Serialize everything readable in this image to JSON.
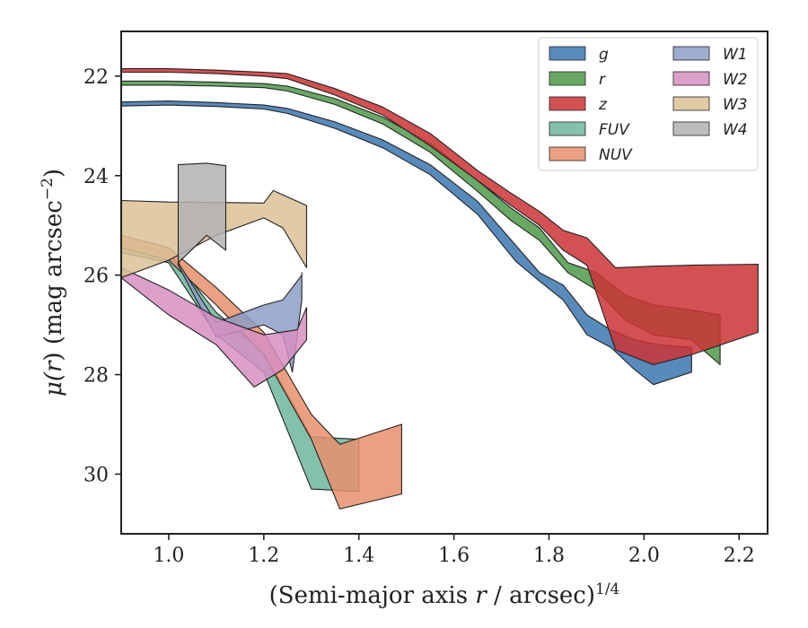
{
  "chart_data": {
    "type": "area",
    "xlabel_main": "(Semi-major axis ",
    "xlabel_var": "r",
    "xlabel_tail": " / arcsec)",
    "xlabel_exp": "1/4",
    "ylabel_mu": "μ(",
    "ylabel_var": "r",
    "ylabel_mid": ") (mag arcsec",
    "ylabel_exp": "−2",
    "ylabel_close": ")",
    "xlim": [
      0.9,
      2.26
    ],
    "ylim": [
      31.2,
      21.1
    ],
    "y_inverted": true,
    "xticks": [
      1.0,
      1.2,
      1.4,
      1.6,
      1.8,
      2.0,
      2.2
    ],
    "xtick_labels": [
      "1.0",
      "1.2",
      "1.4",
      "1.6",
      "1.8",
      "2.0",
      "2.2"
    ],
    "yticks": [
      22,
      24,
      26,
      28,
      30
    ],
    "ytick_labels": [
      "22",
      "24",
      "26",
      "28",
      "30"
    ],
    "grid": false,
    "legend_position": "top-right",
    "legend_columns": 2,
    "series": [
      {
        "name": "g",
        "color": "#3b75af",
        "upper": [
          [
            0.9,
            22.52
          ],
          [
            1.0,
            22.5
          ],
          [
            1.1,
            22.53
          ],
          [
            1.2,
            22.58
          ],
          [
            1.25,
            22.65
          ],
          [
            1.35,
            22.92
          ],
          [
            1.45,
            23.28
          ],
          [
            1.55,
            23.78
          ],
          [
            1.65,
            24.52
          ],
          [
            1.73,
            25.4
          ],
          [
            1.78,
            25.95
          ],
          [
            1.83,
            26.2
          ],
          [
            1.88,
            26.8
          ],
          [
            1.93,
            27.1
          ],
          [
            1.98,
            27.3
          ],
          [
            2.03,
            27.4
          ],
          [
            2.1,
            27.45
          ]
        ],
        "lower": [
          [
            0.9,
            22.6
          ],
          [
            1.0,
            22.58
          ],
          [
            1.1,
            22.61
          ],
          [
            1.2,
            22.66
          ],
          [
            1.25,
            22.75
          ],
          [
            1.35,
            23.05
          ],
          [
            1.45,
            23.44
          ],
          [
            1.55,
            23.98
          ],
          [
            1.65,
            24.78
          ],
          [
            1.73,
            25.72
          ],
          [
            1.78,
            26.12
          ],
          [
            1.83,
            26.5
          ],
          [
            1.88,
            27.2
          ],
          [
            1.93,
            27.45
          ],
          [
            1.98,
            27.9
          ],
          [
            2.02,
            28.2
          ],
          [
            2.1,
            27.95
          ]
        ]
      },
      {
        "name": "r",
        "color": "#4f9a4b",
        "upper": [
          [
            0.9,
            22.1
          ],
          [
            1.0,
            22.1
          ],
          [
            1.1,
            22.12
          ],
          [
            1.2,
            22.15
          ],
          [
            1.25,
            22.2
          ],
          [
            1.35,
            22.45
          ],
          [
            1.45,
            22.82
          ],
          [
            1.55,
            23.35
          ],
          [
            1.65,
            24.1
          ],
          [
            1.72,
            24.65
          ],
          [
            1.78,
            25.05
          ],
          [
            1.84,
            25.75
          ],
          [
            1.9,
            25.95
          ],
          [
            1.96,
            26.4
          ],
          [
            2.02,
            26.6
          ],
          [
            2.1,
            26.7
          ],
          [
            2.16,
            26.8
          ]
        ],
        "lower": [
          [
            0.9,
            22.18
          ],
          [
            1.0,
            22.18
          ],
          [
            1.1,
            22.2
          ],
          [
            1.2,
            22.23
          ],
          [
            1.25,
            22.3
          ],
          [
            1.35,
            22.57
          ],
          [
            1.45,
            22.96
          ],
          [
            1.55,
            23.53
          ],
          [
            1.65,
            24.32
          ],
          [
            1.72,
            24.9
          ],
          [
            1.78,
            25.3
          ],
          [
            1.84,
            25.95
          ],
          [
            1.9,
            26.3
          ],
          [
            1.96,
            26.9
          ],
          [
            2.02,
            27.2
          ],
          [
            2.1,
            27.3
          ],
          [
            2.16,
            27.8
          ]
        ]
      },
      {
        "name": "z",
        "color": "#cb3335",
        "upper": [
          [
            0.9,
            21.85
          ],
          [
            1.0,
            21.85
          ],
          [
            1.1,
            21.88
          ],
          [
            1.2,
            21.92
          ],
          [
            1.25,
            21.95
          ],
          [
            1.35,
            22.25
          ],
          [
            1.45,
            22.62
          ],
          [
            1.55,
            23.15
          ],
          [
            1.65,
            23.9
          ],
          [
            1.72,
            24.35
          ],
          [
            1.78,
            24.72
          ],
          [
            1.83,
            25.1
          ],
          [
            1.88,
            25.25
          ],
          [
            1.94,
            25.85
          ],
          [
            2.02,
            25.82
          ],
          [
            2.1,
            25.8
          ],
          [
            2.24,
            25.78
          ]
        ],
        "lower": [
          [
            0.9,
            21.92
          ],
          [
            1.0,
            21.92
          ],
          [
            1.1,
            21.95
          ],
          [
            1.2,
            22.0
          ],
          [
            1.25,
            22.05
          ],
          [
            1.35,
            22.38
          ],
          [
            1.45,
            22.78
          ],
          [
            1.55,
            23.4
          ],
          [
            1.65,
            24.1
          ],
          [
            1.72,
            24.6
          ],
          [
            1.78,
            25.0
          ],
          [
            1.83,
            25.5
          ],
          [
            1.88,
            25.8
          ],
          [
            1.94,
            27.5
          ],
          [
            2.02,
            27.8
          ],
          [
            2.1,
            27.6
          ],
          [
            2.24,
            27.15
          ]
        ]
      },
      {
        "name": "FUV",
        "color": "#6db69c",
        "upper": [
          [
            0.9,
            25.35
          ],
          [
            1.0,
            25.55
          ],
          [
            1.1,
            26.75
          ],
          [
            1.2,
            27.55
          ],
          [
            1.3,
            29.25
          ],
          [
            1.4,
            29.3
          ]
        ],
        "lower": [
          [
            0.9,
            25.55
          ],
          [
            1.0,
            25.75
          ],
          [
            1.1,
            27.2
          ],
          [
            1.2,
            27.95
          ],
          [
            1.3,
            30.3
          ],
          [
            1.4,
            30.35
          ]
        ]
      },
      {
        "name": "NUV",
        "color": "#e88f6b",
        "upper": [
          [
            0.9,
            25.2
          ],
          [
            1.0,
            25.45
          ],
          [
            1.1,
            26.25
          ],
          [
            1.2,
            27.15
          ],
          [
            1.3,
            28.8
          ],
          [
            1.36,
            29.4
          ],
          [
            1.49,
            29.0
          ]
        ],
        "lower": [
          [
            0.9,
            25.45
          ],
          [
            1.0,
            25.7
          ],
          [
            1.1,
            26.6
          ],
          [
            1.2,
            27.6
          ],
          [
            1.3,
            29.3
          ],
          [
            1.36,
            30.7
          ],
          [
            1.49,
            30.4
          ]
        ]
      },
      {
        "name": "W1",
        "color": "#8d9dc6",
        "upper": [
          [
            1.02,
            25.75
          ],
          [
            1.1,
            26.95
          ],
          [
            1.2,
            26.6
          ],
          [
            1.24,
            26.5
          ],
          [
            1.28,
            26.0
          ],
          [
            1.28,
            25.95
          ]
        ],
        "lower": [
          [
            1.02,
            25.8
          ],
          [
            1.1,
            27.25
          ],
          [
            1.2,
            27.0
          ],
          [
            1.24,
            27.2
          ],
          [
            1.26,
            27.95
          ],
          [
            1.28,
            26.5
          ]
        ]
      },
      {
        "name": "W2",
        "color": "#d68fc2",
        "upper": [
          [
            0.9,
            25.85
          ],
          [
            1.0,
            26.3
          ],
          [
            1.1,
            26.85
          ],
          [
            1.2,
            27.2
          ],
          [
            1.27,
            27.1
          ],
          [
            1.29,
            26.65
          ]
        ],
        "lower": [
          [
            0.9,
            26.05
          ],
          [
            1.0,
            26.8
          ],
          [
            1.1,
            27.4
          ],
          [
            1.18,
            28.25
          ],
          [
            1.24,
            27.9
          ],
          [
            1.29,
            27.3
          ]
        ]
      },
      {
        "name": "W3",
        "color": "#dcc196",
        "upper": [
          [
            0.9,
            24.5
          ],
          [
            1.0,
            24.53
          ],
          [
            1.1,
            24.54
          ],
          [
            1.2,
            24.55
          ],
          [
            1.22,
            24.3
          ],
          [
            1.29,
            24.6
          ]
        ],
        "lower": [
          [
            0.9,
            26.05
          ],
          [
            1.0,
            25.7
          ],
          [
            1.1,
            25.2
          ],
          [
            1.2,
            24.85
          ],
          [
            1.24,
            25.05
          ],
          [
            1.29,
            25.85
          ]
        ]
      },
      {
        "name": "W4",
        "color": "#b2b2b2",
        "upper": [
          [
            1.02,
            23.78
          ],
          [
            1.08,
            23.75
          ],
          [
            1.12,
            23.8
          ]
        ],
        "lower": [
          [
            1.02,
            25.75
          ],
          [
            1.08,
            25.2
          ],
          [
            1.12,
            25.5
          ]
        ]
      }
    ]
  }
}
